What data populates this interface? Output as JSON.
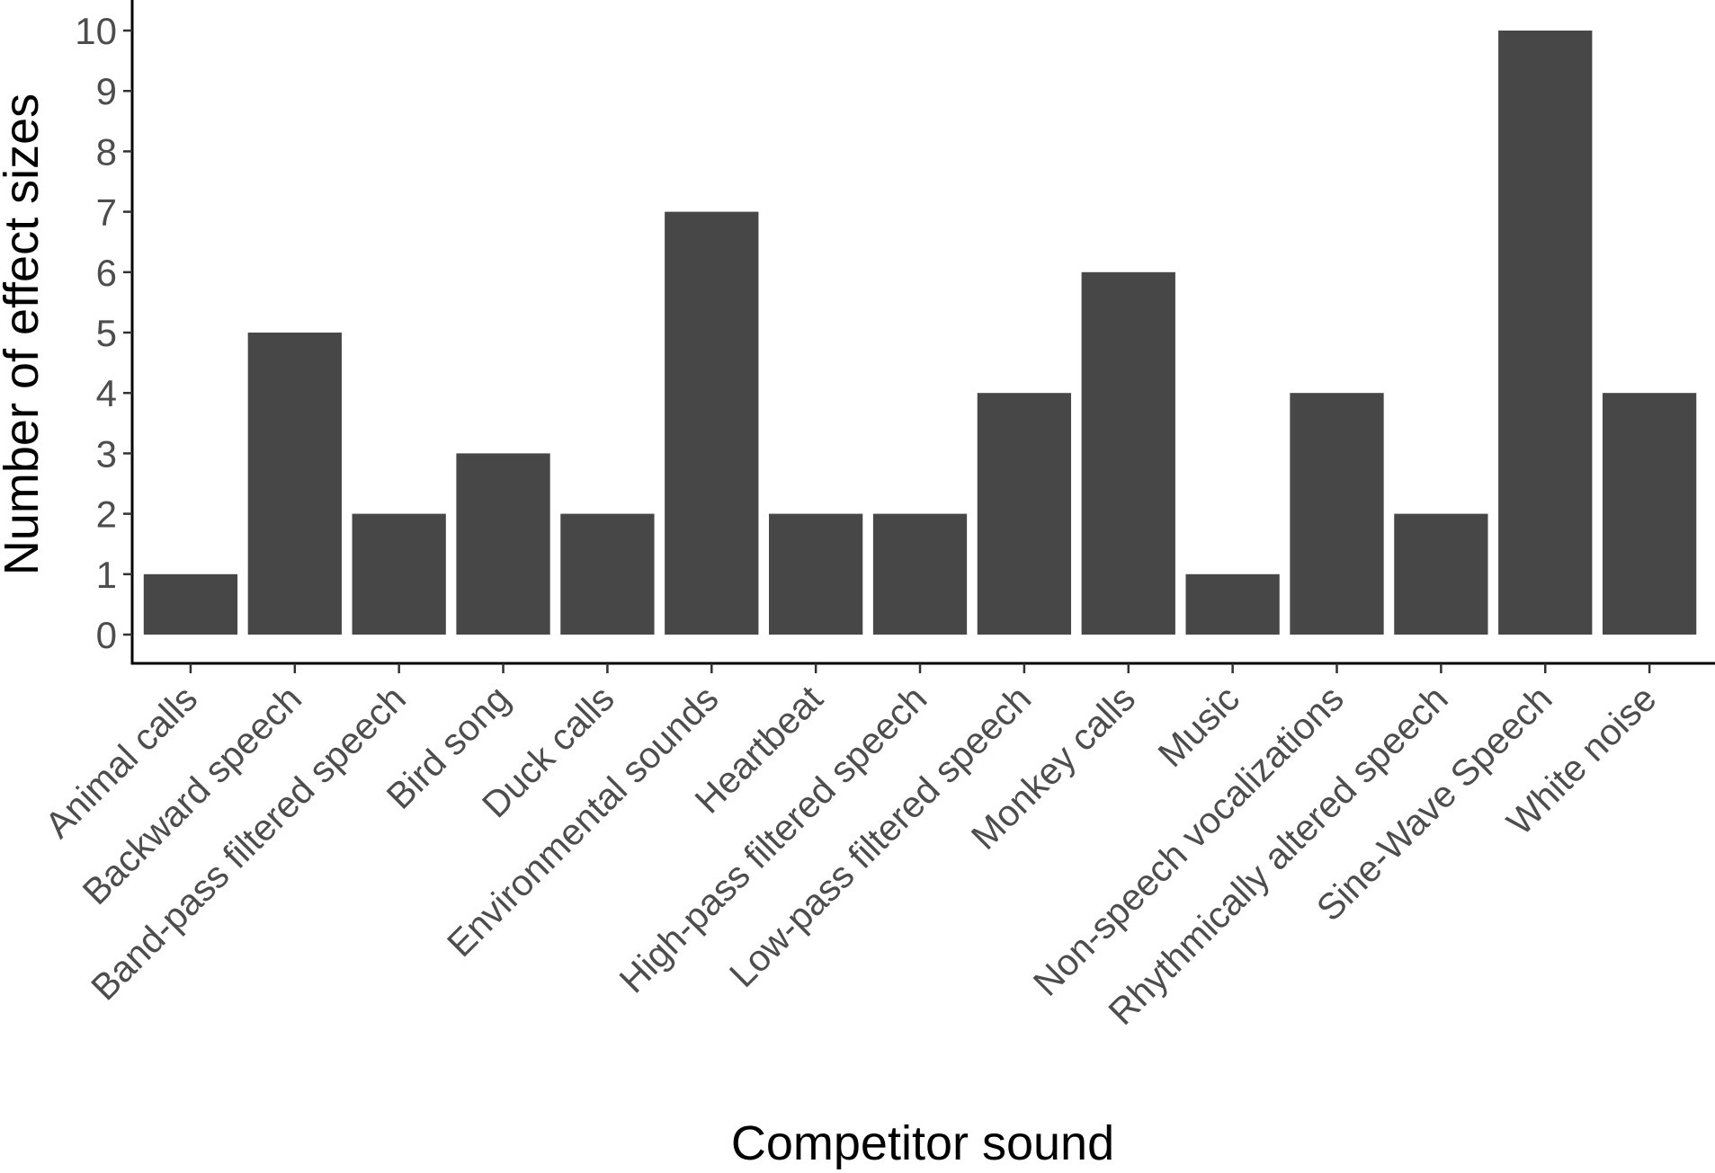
{
  "chart_data": {
    "type": "bar",
    "xlabel": "Competitor sound",
    "ylabel": "Number of effect sizes",
    "categories": [
      "Animal calls",
      "Backward speech",
      "Band-pass filtered speech",
      "Bird song",
      "Duck calls",
      "Environmental sounds",
      "Heartbeat",
      "High-pass filtered speech",
      "Low-pass filtered speech",
      "Monkey calls",
      "Music",
      "Non-speech vocalizations",
      "Rhythmically altered speech",
      "Sine-Wave Speech",
      "White noise"
    ],
    "values": [
      1,
      5,
      2,
      3,
      2,
      7,
      2,
      2,
      4,
      6,
      1,
      4,
      2,
      10,
      4
    ],
    "ylim": [
      0,
      10
    ],
    "yticks": [
      "0",
      "1",
      "2",
      "3",
      "4",
      "5",
      "6",
      "7",
      "8",
      "9",
      "10"
    ],
    "grid": false,
    "legend": "none",
    "bar_color": "#474747",
    "axis_color": "#000000"
  }
}
